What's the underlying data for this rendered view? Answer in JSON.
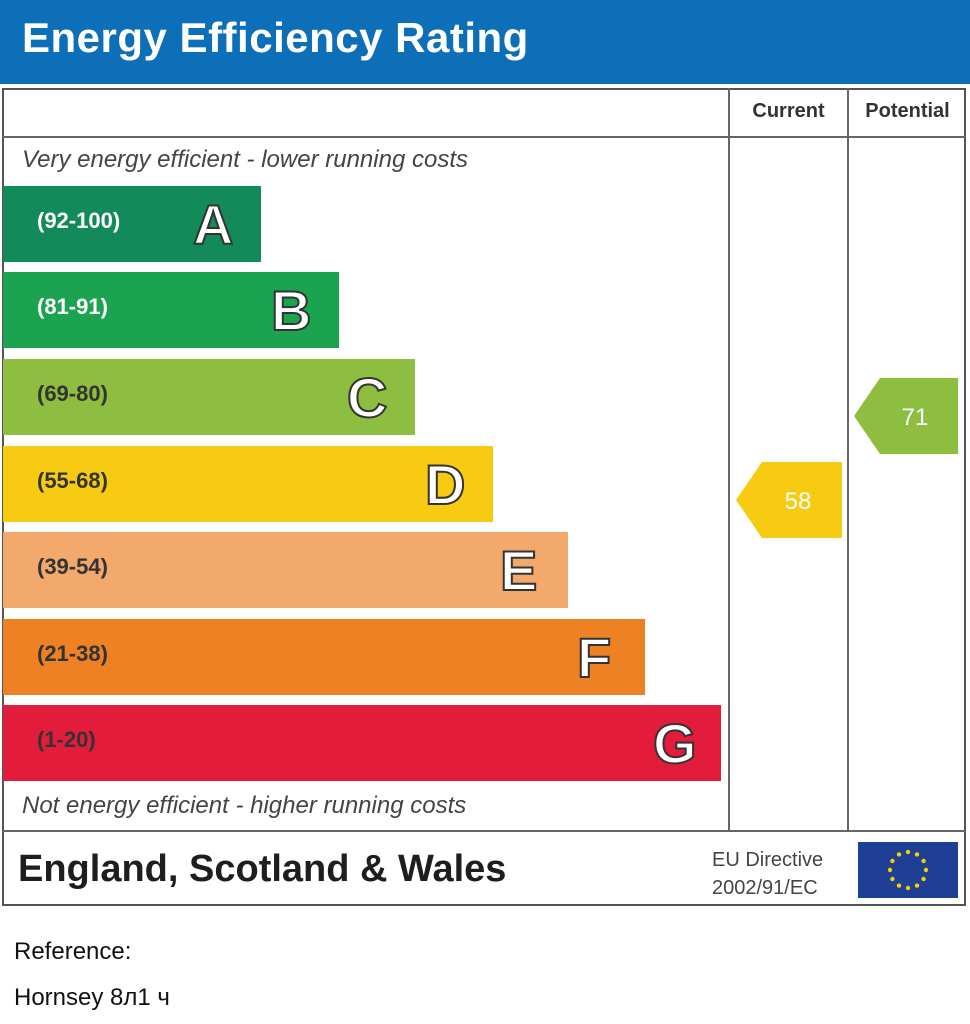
{
  "header": {
    "title": "Energy Efficiency Rating"
  },
  "columns": {
    "current": "Current",
    "potential": "Potential"
  },
  "captions": {
    "top": "Very energy efficient - lower running costs",
    "bottom": "Not energy efficient - higher running costs"
  },
  "bands": [
    {
      "range": "(92-100)",
      "letter": "A",
      "color": "#138a5a",
      "range_color": "#ffffff"
    },
    {
      "range": "(81-91)",
      "letter": "B",
      "color": "#1ba34f",
      "range_color": "#ffffff"
    },
    {
      "range": "(69-80)",
      "letter": "C",
      "color": "#8dbe3f",
      "range_color": "#333333"
    },
    {
      "range": "(55-68)",
      "letter": "D",
      "color": "#f6cb12",
      "range_color": "#333333"
    },
    {
      "range": "(39-54)",
      "letter": "E",
      "color": "#f2a96b",
      "range_color": "#333333"
    },
    {
      "range": "(21-38)",
      "letter": "F",
      "color": "#ed8123",
      "range_color": "#333333"
    },
    {
      "range": "(1-20)",
      "letter": "G",
      "color": "#e31c3b",
      "range_color": "#333333"
    }
  ],
  "ratings": {
    "current": {
      "value": "58",
      "color": "#f6cb12"
    },
    "potential": {
      "value": "71",
      "color": "#8dbe3f"
    }
  },
  "footer": {
    "region": "England, Scotland & Wales",
    "eu_line1": "EU Directive",
    "eu_line2": "2002/91/EC"
  },
  "reference": {
    "label": "Reference:",
    "value": "Hornsey 8л1 ч"
  }
}
